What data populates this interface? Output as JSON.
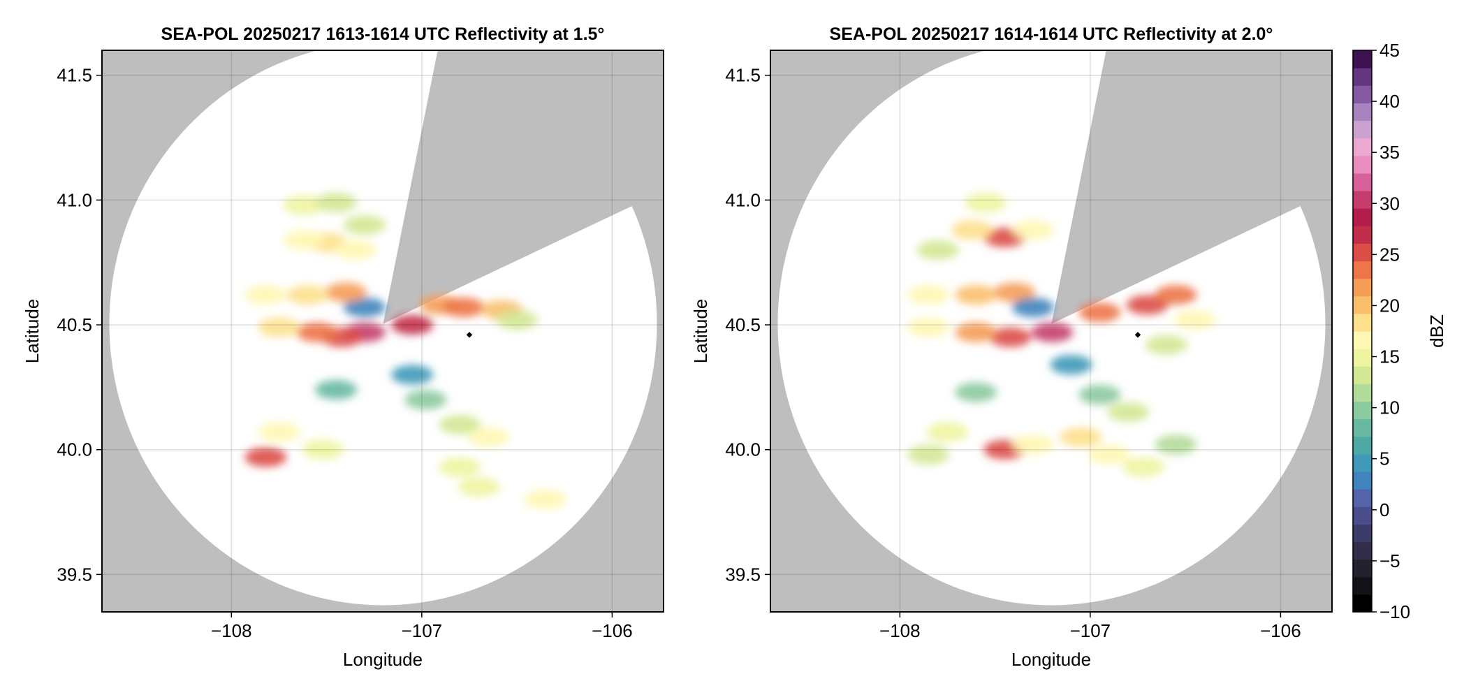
{
  "panels": [
    {
      "title": "SEA-POL 20250217 1613-1614 UTC Reflectivity at 1.5°",
      "xlabel": "Longitude",
      "ylabel": "Latitude"
    },
    {
      "title": "SEA-POL 20250217 1614-1614 UTC Reflectivity at 2.0°",
      "xlabel": "Longitude",
      "ylabel": "Latitude"
    }
  ],
  "axes": {
    "xlim": [
      -108.68,
      -105.73
    ],
    "ylim": [
      39.35,
      41.6
    ],
    "xticks": [
      -108,
      -107,
      -106
    ],
    "xtick_labels": [
      "−108",
      "−107",
      "−106"
    ],
    "yticks": [
      39.5,
      40.0,
      40.5,
      41.0,
      41.5
    ],
    "ytick_labels": [
      "39.5",
      "40.0",
      "40.5",
      "41.0",
      "41.5"
    ],
    "grid": true,
    "background_color": "#bebebe",
    "coverage_color": "#ffffff"
  },
  "colorbar": {
    "label": "dBZ",
    "range": [
      -10,
      45
    ],
    "ticks": [
      -10,
      -5,
      0,
      5,
      10,
      15,
      20,
      25,
      30,
      35,
      40,
      45
    ],
    "tick_labels": [
      "−10",
      "−5",
      "0",
      "5",
      "10",
      "15",
      "20",
      "25",
      "30",
      "35",
      "40",
      "45"
    ],
    "colors": [
      "#000000",
      "#141218",
      "#25202e",
      "#322e4a",
      "#3c3c6a",
      "#4a4d8c",
      "#5563a8",
      "#3f84bd",
      "#3f99b8",
      "#4faaa6",
      "#68b8a2",
      "#8bc99f",
      "#b2da98",
      "#d3e894",
      "#eef4a0",
      "#fff7b4",
      "#fde08c",
      "#f9bf6d",
      "#f59c57",
      "#ed7548",
      "#db4e48",
      "#c22d49",
      "#b21d4c",
      "#c43d6d",
      "#d9619a",
      "#e88dbd",
      "#eda8cf",
      "#caa1cf",
      "#a983bd",
      "#8659a3",
      "#64367f",
      "#3e1250"
    ]
  },
  "chart_data": [
    {
      "type": "heatmap",
      "title": "SEA-POL 20250217 1613-1614 UTC Reflectivity at 1.5°",
      "xlabel": "Longitude",
      "ylabel": "Latitude",
      "xlim": [
        -108.68,
        -105.73
      ],
      "ylim": [
        39.35,
        41.6
      ],
      "value_label": "dBZ",
      "value_range": [
        -10,
        45
      ],
      "radar_site": {
        "lon": -107.2,
        "lat": 40.48
      },
      "coverage_radius_deg_lat": 1.085,
      "blocked_sector": {
        "vertex": [
          -107.2,
          40.48
        ],
        "edge1": [
          -106.86,
          41.53
        ],
        "edge2": [
          -106.04,
          41.12
        ]
      },
      "marker": {
        "lon": -106.75,
        "lat": 40.46
      },
      "echo_cells": [
        {
          "lon": -106.9,
          "lat": 40.58,
          "dbz": 22
        },
        {
          "lon": -106.78,
          "lat": 40.57,
          "dbz": 24
        },
        {
          "lon": -106.58,
          "lat": 40.56,
          "dbz": 20
        },
        {
          "lon": -106.5,
          "lat": 40.52,
          "dbz": 14
        },
        {
          "lon": -107.05,
          "lat": 40.5,
          "dbz": 27
        },
        {
          "lon": -107.3,
          "lat": 40.47,
          "dbz": 30
        },
        {
          "lon": -107.42,
          "lat": 40.45,
          "dbz": 25
        },
        {
          "lon": -107.55,
          "lat": 40.47,
          "dbz": 23
        },
        {
          "lon": -107.75,
          "lat": 40.49,
          "dbz": 18
        },
        {
          "lon": -107.3,
          "lat": 40.57,
          "dbz": 3
        },
        {
          "lon": -107.4,
          "lat": 40.63,
          "dbz": 22
        },
        {
          "lon": -107.6,
          "lat": 40.62,
          "dbz": 19
        },
        {
          "lon": -107.82,
          "lat": 40.62,
          "dbz": 17
        },
        {
          "lon": -107.5,
          "lat": 40.83,
          "dbz": 18
        },
        {
          "lon": -107.62,
          "lat": 40.84,
          "dbz": 16
        },
        {
          "lon": -107.35,
          "lat": 40.8,
          "dbz": 17
        },
        {
          "lon": -107.3,
          "lat": 40.9,
          "dbz": 14
        },
        {
          "lon": -107.62,
          "lat": 40.98,
          "dbz": 15
        },
        {
          "lon": -107.45,
          "lat": 40.99,
          "dbz": 14
        },
        {
          "lon": -107.05,
          "lat": 40.3,
          "dbz": 4
        },
        {
          "lon": -106.98,
          "lat": 40.2,
          "dbz": 10
        },
        {
          "lon": -106.8,
          "lat": 40.1,
          "dbz": 14
        },
        {
          "lon": -106.65,
          "lat": 40.05,
          "dbz": 17
        },
        {
          "lon": -106.8,
          "lat": 39.93,
          "dbz": 15
        },
        {
          "lon": -106.7,
          "lat": 39.85,
          "dbz": 15
        },
        {
          "lon": -106.35,
          "lat": 39.8,
          "dbz": 17
        },
        {
          "lon": -107.82,
          "lat": 39.97,
          "dbz": 26
        },
        {
          "lon": -107.75,
          "lat": 40.07,
          "dbz": 17
        },
        {
          "lon": -107.52,
          "lat": 40.0,
          "dbz": 15
        },
        {
          "lon": -107.45,
          "lat": 40.24,
          "dbz": 8
        }
      ]
    },
    {
      "type": "heatmap",
      "title": "SEA-POL 20250217 1614-1614 UTC Reflectivity at 2.0°",
      "xlabel": "Longitude",
      "ylabel": "Latitude",
      "xlim": [
        -108.68,
        -105.73
      ],
      "ylim": [
        39.35,
        41.6
      ],
      "value_label": "dBZ",
      "value_range": [
        -10,
        45
      ],
      "radar_site": {
        "lon": -107.2,
        "lat": 40.48
      },
      "coverage_radius_deg_lat": 1.085,
      "blocked_sector": {
        "vertex": [
          -107.2,
          40.48
        ],
        "edge1": [
          -106.86,
          41.53
        ],
        "edge2": [
          -106.04,
          41.12
        ]
      },
      "marker": {
        "lon": -106.75,
        "lat": 40.46
      },
      "echo_cells": [
        {
          "lon": -107.45,
          "lat": 40.85,
          "dbz": 25
        },
        {
          "lon": -107.62,
          "lat": 40.88,
          "dbz": 18
        },
        {
          "lon": -107.3,
          "lat": 40.88,
          "dbz": 16
        },
        {
          "lon": -107.55,
          "lat": 40.99,
          "dbz": 15
        },
        {
          "lon": -107.8,
          "lat": 40.8,
          "dbz": 14
        },
        {
          "lon": -107.4,
          "lat": 40.63,
          "dbz": 22
        },
        {
          "lon": -107.6,
          "lat": 40.62,
          "dbz": 20
        },
        {
          "lon": -107.85,
          "lat": 40.62,
          "dbz": 17
        },
        {
          "lon": -107.3,
          "lat": 40.57,
          "dbz": 3
        },
        {
          "lon": -107.2,
          "lat": 40.47,
          "dbz": 31
        },
        {
          "lon": -107.42,
          "lat": 40.45,
          "dbz": 26
        },
        {
          "lon": -107.6,
          "lat": 40.47,
          "dbz": 22
        },
        {
          "lon": -107.85,
          "lat": 40.49,
          "dbz": 17
        },
        {
          "lon": -106.95,
          "lat": 40.55,
          "dbz": 24
        },
        {
          "lon": -106.7,
          "lat": 40.58,
          "dbz": 26
        },
        {
          "lon": -106.55,
          "lat": 40.62,
          "dbz": 23
        },
        {
          "lon": -106.45,
          "lat": 40.52,
          "dbz": 16
        },
        {
          "lon": -106.6,
          "lat": 40.42,
          "dbz": 13
        },
        {
          "lon": -107.1,
          "lat": 40.34,
          "dbz": 4
        },
        {
          "lon": -106.95,
          "lat": 40.22,
          "dbz": 9
        },
        {
          "lon": -106.8,
          "lat": 40.15,
          "dbz": 13
        },
        {
          "lon": -107.45,
          "lat": 40.0,
          "dbz": 26
        },
        {
          "lon": -107.3,
          "lat": 40.02,
          "dbz": 17
        },
        {
          "lon": -107.05,
          "lat": 40.05,
          "dbz": 18
        },
        {
          "lon": -106.9,
          "lat": 39.98,
          "dbz": 16
        },
        {
          "lon": -106.72,
          "lat": 39.93,
          "dbz": 15
        },
        {
          "lon": -107.75,
          "lat": 40.07,
          "dbz": 15
        },
        {
          "lon": -107.85,
          "lat": 39.98,
          "dbz": 14
        },
        {
          "lon": -107.6,
          "lat": 40.23,
          "dbz": 10
        },
        {
          "lon": -106.55,
          "lat": 40.02,
          "dbz": 12
        }
      ]
    }
  ]
}
